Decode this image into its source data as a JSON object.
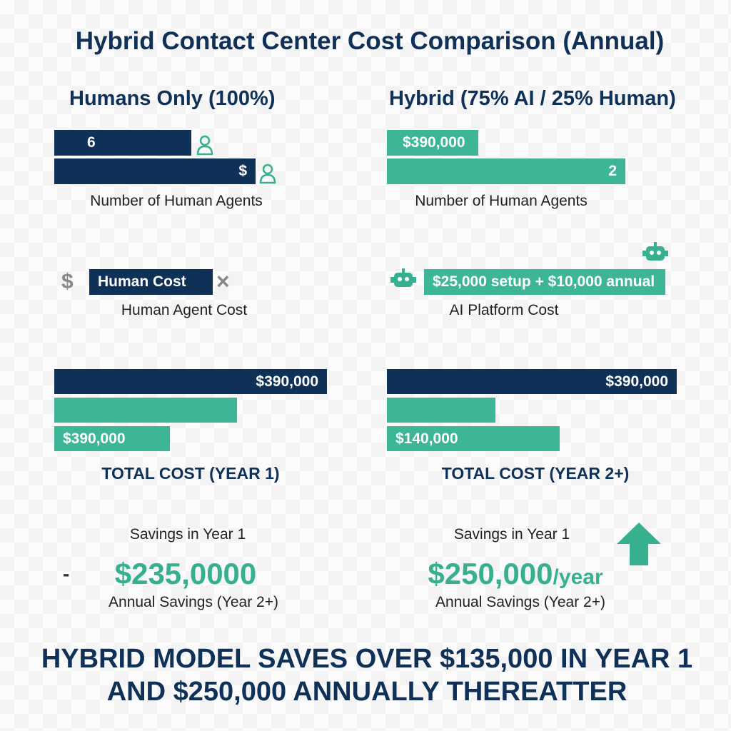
{
  "title": "Hybrid Contact Center Cost Comparison (Annual)",
  "left": {
    "heading": "Humans Only (100%)",
    "agents": {
      "bars": [
        "6",
        "$"
      ],
      "label": "Number of Human Agents"
    },
    "cost": {
      "icon": "$",
      "bar": "Human Cost",
      "mark": "×",
      "label": "Human Agent Cost"
    },
    "total": {
      "bars": [
        "$390,000",
        "$390,000"
      ],
      "label": "TOTAL COST (YEAR 1)"
    },
    "savings": {
      "marker": "-",
      "caption": "Savings in Year 1",
      "amount": "$235,0000",
      "note": "Annual Savings (Year 2+)"
    }
  },
  "right": {
    "heading": "Hybrid (75% AI / 25% Human)",
    "agents": {
      "bars": [
        "$390,000",
        "2"
      ],
      "label": "Number of Human Agents"
    },
    "cost": {
      "bar": "$25,000 setup + $10,000 annual",
      "label": "AI Platform Cost"
    },
    "total": {
      "bars": [
        "$390,000",
        "$140,000"
      ],
      "label": "TOTAL COST (YEAR 2+)"
    },
    "savings": {
      "caption": "Savings in Year 1",
      "amount": "$250,000",
      "unit": "/year",
      "note": "Annual Savings (Year 2+)"
    }
  },
  "footer": [
    "HYBRID MODEL SAVES OVER $135,000 IN YEAR 1",
    "AND $250,000 ANNUALLY THEREATTER"
  ]
}
